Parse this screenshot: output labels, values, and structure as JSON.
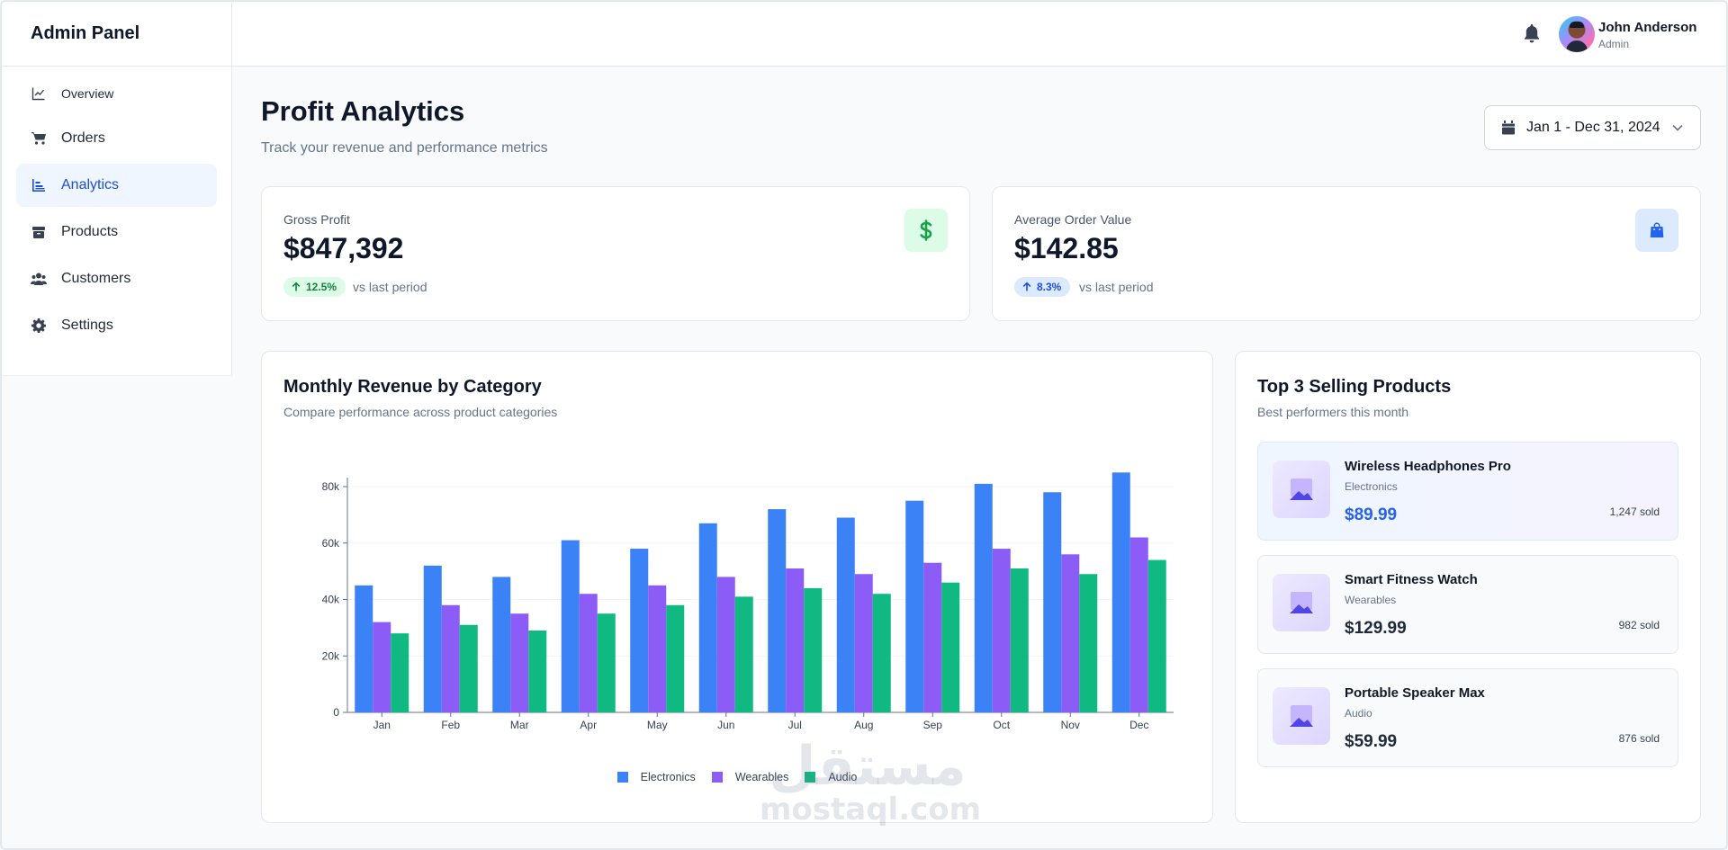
{
  "sidebar": {
    "brand": "Admin Panel",
    "items": [
      {
        "label": "Overview",
        "icon": "chart-line-icon"
      },
      {
        "label": "Orders",
        "icon": "cart-icon"
      },
      {
        "label": "Analytics",
        "icon": "bar-chart-icon",
        "active": true
      },
      {
        "label": "Products",
        "icon": "box-icon"
      },
      {
        "label": "Customers",
        "icon": "users-icon"
      },
      {
        "label": "Settings",
        "icon": "gear-icon"
      }
    ]
  },
  "header": {
    "user_name": "John Anderson",
    "user_role": "Admin"
  },
  "page": {
    "title": "Profit Analytics",
    "subtitle": "Track your revenue and performance metrics",
    "date_range": "Jan 1 - Dec 31, 2024"
  },
  "stats": [
    {
      "label": "Gross Profit",
      "value": "$847,392",
      "change": "12.5%",
      "compare": "vs last period",
      "color": "#16a34a"
    },
    {
      "label": "Average Order Value",
      "value": "$142.85",
      "change": "8.3%",
      "compare": "vs last period",
      "color": "#2563eb"
    }
  ],
  "revenue_card": {
    "title": "Monthly Revenue by Category",
    "subtitle": "Compare performance across product categories"
  },
  "chart_data": {
    "type": "bar",
    "title": "Monthly Revenue by Category",
    "categories": [
      "Jan",
      "Feb",
      "Mar",
      "Apr",
      "May",
      "Jun",
      "Jul",
      "Aug",
      "Sep",
      "Oct",
      "Nov",
      "Dec"
    ],
    "series": [
      {
        "name": "Electronics",
        "color": "#3b82f6",
        "values": [
          45000,
          52000,
          48000,
          61000,
          58000,
          67000,
          72000,
          69000,
          75000,
          81000,
          78000,
          85000
        ]
      },
      {
        "name": "Wearables",
        "color": "#8b5cf6",
        "values": [
          32000,
          38000,
          35000,
          42000,
          45000,
          48000,
          51000,
          49000,
          53000,
          58000,
          56000,
          62000
        ]
      },
      {
        "name": "Audio",
        "color": "#10b981",
        "values": [
          28000,
          31000,
          29000,
          35000,
          38000,
          41000,
          44000,
          42000,
          46000,
          51000,
          49000,
          54000
        ]
      }
    ],
    "y_ticks": [
      "0",
      "20k",
      "40k",
      "60k",
      "80k"
    ],
    "ylim": [
      0,
      80000
    ],
    "legend_position": "bottom"
  },
  "products_card": {
    "title": "Top 3 Selling Products",
    "subtitle": "Best performers this month",
    "items": [
      {
        "name": "Wireless Headphones Pro",
        "category": "Electronics",
        "price": "$89.99",
        "sold": "1,247 sold"
      },
      {
        "name": "Smart Fitness Watch",
        "category": "Wearables",
        "price": "$129.99",
        "sold": "982 sold"
      },
      {
        "name": "Portable Speaker Max",
        "category": "Audio",
        "price": "$59.99",
        "sold": "876 sold"
      }
    ]
  },
  "watermark": {
    "arabic": "مستقل",
    "text": "mostaql.com"
  }
}
